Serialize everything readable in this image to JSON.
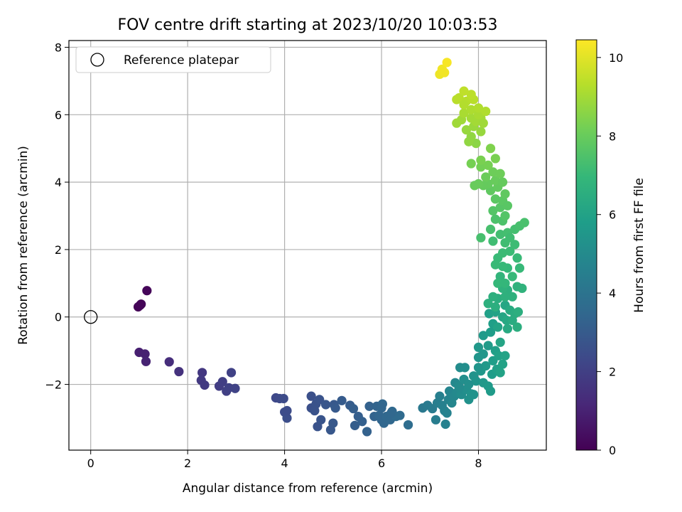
{
  "chart_data": {
    "type": "scatter",
    "title": "FOV centre drift starting at 2023/10/20 10:03:53",
    "xlabel": "Angular distance from reference (arcmin)",
    "ylabel": "Rotation from reference (arcmin)",
    "xlim": [
      -0.45,
      9.4
    ],
    "ylim": [
      -3.95,
      8.2
    ],
    "xticks": [
      "0",
      "2",
      "4",
      "6",
      "8"
    ],
    "yticks": [
      "−2",
      "0",
      "2",
      "4",
      "6",
      "8"
    ],
    "grid": true,
    "legend": {
      "placement": "top-left",
      "entries": [
        "Reference platepar"
      ]
    },
    "reference_point": {
      "x": 0,
      "y": 0
    },
    "colorbar": {
      "label": "Hours from first FF file",
      "range": [
        0,
        10.45
      ],
      "ticks": [
        "0",
        "2",
        "4",
        "6",
        "8",
        "10"
      ],
      "colormap": "viridis"
    },
    "points": [
      [
        0.98,
        0.3,
        0.1
      ],
      [
        1.04,
        0.38,
        0.12
      ],
      [
        1.16,
        0.78,
        0.15
      ],
      [
        1.02,
        0.35,
        0.13
      ],
      [
        1.0,
        -1.05,
        0.9
      ],
      [
        1.12,
        -1.1,
        0.95
      ],
      [
        1.14,
        -1.32,
        1.0
      ],
      [
        1.62,
        -1.33,
        1.35
      ],
      [
        1.82,
        -1.62,
        1.5
      ],
      [
        2.3,
        -1.65,
        1.7
      ],
      [
        2.28,
        -1.88,
        1.75
      ],
      [
        2.35,
        -2.02,
        1.8
      ],
      [
        2.65,
        -2.05,
        1.9
      ],
      [
        2.72,
        -1.92,
        1.95
      ],
      [
        2.8,
        -2.2,
        2.0
      ],
      [
        2.9,
        -1.65,
        2.05
      ],
      [
        2.85,
        -2.1,
        2.05
      ],
      [
        2.98,
        -2.12,
        2.1
      ],
      [
        3.82,
        -2.4,
        2.3
      ],
      [
        3.9,
        -2.42,
        2.35
      ],
      [
        3.98,
        -2.42,
        2.4
      ],
      [
        4.0,
        -2.82,
        2.45
      ],
      [
        4.05,
        -3.0,
        2.5
      ],
      [
        4.05,
        -2.78,
        2.45
      ],
      [
        4.55,
        -2.35,
        2.6
      ],
      [
        4.55,
        -2.7,
        2.6
      ],
      [
        4.65,
        -2.58,
        2.65
      ],
      [
        4.62,
        -2.78,
        2.65
      ],
      [
        4.68,
        -3.25,
        2.7
      ],
      [
        4.72,
        -2.45,
        2.7
      ],
      [
        4.75,
        -3.05,
        2.75
      ],
      [
        4.85,
        -2.6,
        2.8
      ],
      [
        4.95,
        -3.35,
        2.85
      ],
      [
        5.0,
        -3.15,
        2.9
      ],
      [
        5.02,
        -2.6,
        2.9
      ],
      [
        5.05,
        -2.7,
        2.95
      ],
      [
        5.18,
        -2.48,
        3.0
      ],
      [
        5.35,
        -2.62,
        3.05
      ],
      [
        5.42,
        -2.72,
        3.1
      ],
      [
        5.45,
        -3.22,
        3.1
      ],
      [
        5.52,
        -2.95,
        3.15
      ],
      [
        5.6,
        -3.1,
        3.2
      ],
      [
        5.7,
        -3.4,
        3.25
      ],
      [
        5.75,
        -2.65,
        3.25
      ],
      [
        5.85,
        -2.95,
        3.3
      ],
      [
        5.9,
        -2.65,
        3.35
      ],
      [
        5.95,
        -2.92,
        3.4
      ],
      [
        6.0,
        -3.05,
        3.4
      ],
      [
        6.02,
        -2.58,
        3.45
      ],
      [
        6.05,
        -3.15,
        3.45
      ],
      [
        6.1,
        -2.95,
        3.5
      ],
      [
        6.18,
        -3.05,
        3.5
      ],
      [
        6.22,
        -2.8,
        3.55
      ],
      [
        6.3,
        -2.95,
        3.6
      ],
      [
        6.38,
        -2.92,
        3.6
      ],
      [
        6.55,
        -3.2,
        3.7
      ],
      [
        6.2,
        -2.85,
        3.5
      ],
      [
        6.0,
        -2.7,
        3.4
      ],
      [
        6.85,
        -2.7,
        4.2
      ],
      [
        6.95,
        -2.62,
        4.3
      ],
      [
        7.05,
        -2.72,
        4.35
      ],
      [
        7.12,
        -3.05,
        4.4
      ],
      [
        7.15,
        -2.55,
        4.45
      ],
      [
        7.2,
        -2.35,
        4.5
      ],
      [
        7.25,
        -2.62,
        4.55
      ],
      [
        7.3,
        -2.78,
        4.6
      ],
      [
        7.32,
        -3.18,
        4.6
      ],
      [
        7.35,
        -2.85,
        4.65
      ],
      [
        7.38,
        -2.45,
        4.7
      ],
      [
        7.4,
        -2.2,
        4.75
      ],
      [
        7.45,
        -2.55,
        4.8
      ],
      [
        7.5,
        -2.35,
        4.85
      ],
      [
        7.52,
        -1.95,
        4.9
      ],
      [
        7.55,
        -2.25,
        4.95
      ],
      [
        7.6,
        -2.05,
        5.0
      ],
      [
        7.62,
        -1.5,
        5.05
      ],
      [
        7.65,
        -2.3,
        5.1
      ],
      [
        7.7,
        -1.85,
        5.15
      ],
      [
        7.72,
        -1.5,
        5.15
      ],
      [
        7.75,
        -2.15,
        5.2
      ],
      [
        7.8,
        -2.45,
        5.25
      ],
      [
        7.85,
        -2.28,
        5.3
      ],
      [
        7.9,
        -1.75,
        5.35
      ],
      [
        7.95,
        -1.9,
        5.4
      ],
      [
        8.0,
        -1.2,
        5.45
      ],
      [
        8.05,
        -1.6,
        5.5
      ],
      [
        8.1,
        -1.95,
        5.55
      ],
      [
        8.15,
        -1.45,
        5.6
      ],
      [
        8.2,
        -2.05,
        5.65
      ],
      [
        8.25,
        -2.2,
        5.7
      ],
      [
        8.28,
        -1.7,
        5.75
      ],
      [
        8.3,
        -1.3,
        5.8
      ],
      [
        8.35,
        -1.0,
        5.85
      ],
      [
        8.38,
        -1.55,
        5.9
      ],
      [
        8.42,
        -1.15,
        5.95
      ],
      [
        8.45,
        -1.65,
        6.0
      ],
      [
        8.5,
        -1.4,
        6.0
      ],
      [
        8.55,
        -1.15,
        6.05
      ],
      [
        7.6,
        -2.1,
        5.0
      ],
      [
        7.8,
        -2.0,
        5.2
      ],
      [
        7.9,
        -2.3,
        5.3
      ],
      [
        8.0,
        -1.5,
        5.45
      ],
      [
        8.1,
        -1.1,
        5.5
      ],
      [
        8.0,
        -0.9,
        5.55
      ],
      [
        8.1,
        -0.55,
        5.65
      ],
      [
        8.2,
        -0.85,
        5.7
      ],
      [
        8.25,
        -0.45,
        5.75
      ],
      [
        8.3,
        -0.2,
        5.85
      ],
      [
        8.22,
        0.1,
        5.9
      ],
      [
        8.35,
        0.15,
        6.0
      ],
      [
        8.4,
        -0.3,
        6.05
      ],
      [
        8.45,
        -0.75,
        6.1
      ],
      [
        8.5,
        0.0,
        6.15
      ],
      [
        8.55,
        0.35,
        6.2
      ],
      [
        8.58,
        -0.1,
        6.25
      ],
      [
        8.6,
        -0.35,
        6.3
      ],
      [
        8.65,
        0.2,
        6.35
      ],
      [
        8.7,
        -0.1,
        6.4
      ],
      [
        8.75,
        0.1,
        6.45
      ],
      [
        8.8,
        -0.3,
        6.5
      ],
      [
        8.82,
        0.15,
        6.55
      ],
      [
        8.4,
        0.55,
        6.5
      ],
      [
        8.6,
        0.8,
        6.6
      ],
      [
        8.7,
        0.6,
        6.65
      ],
      [
        8.8,
        0.9,
        6.7
      ],
      [
        8.3,
        0.6,
        6.6
      ],
      [
        8.5,
        0.85,
        6.7
      ],
      [
        8.9,
        0.85,
        6.75
      ],
      [
        8.2,
        0.4,
        6.6
      ],
      [
        8.35,
        0.3,
        6.55
      ],
      [
        8.55,
        0.6,
        6.65
      ],
      [
        8.45,
        1.2,
        6.85
      ],
      [
        8.6,
        1.45,
        6.95
      ],
      [
        8.7,
        1.2,
        7.0
      ],
      [
        8.5,
        1.5,
        7.0
      ],
      [
        8.8,
        1.75,
        7.05
      ],
      [
        8.4,
        1.75,
        7.05
      ],
      [
        8.35,
        1.55,
        7.05
      ],
      [
        8.65,
        1.95,
        7.1
      ],
      [
        8.75,
        2.15,
        7.15
      ],
      [
        8.55,
        2.2,
        7.2
      ],
      [
        8.3,
        2.25,
        7.2
      ],
      [
        8.45,
        2.45,
        7.25
      ],
      [
        8.6,
        2.5,
        7.3
      ],
      [
        8.75,
        2.6,
        7.3
      ],
      [
        8.85,
        2.7,
        7.35
      ],
      [
        8.95,
        2.8,
        7.4
      ],
      [
        8.25,
        2.6,
        7.35
      ],
      [
        8.05,
        2.35,
        7.35
      ],
      [
        8.5,
        2.85,
        7.45
      ],
      [
        8.35,
        2.9,
        7.45
      ],
      [
        8.65,
        2.35,
        7.2
      ],
      [
        8.5,
        1.9,
        7.1
      ],
      [
        8.4,
        1.0,
        6.95
      ],
      [
        8.55,
        1.0,
        6.9
      ],
      [
        8.85,
        1.45,
        7.0
      ],
      [
        8.3,
        3.15,
        7.6
      ],
      [
        8.45,
        3.25,
        7.65
      ],
      [
        8.55,
        3.0,
        7.6
      ],
      [
        8.35,
        3.5,
        7.75
      ],
      [
        8.5,
        3.45,
        7.75
      ],
      [
        8.6,
        3.3,
        7.7
      ],
      [
        8.25,
        3.75,
        7.85
      ],
      [
        8.4,
        3.85,
        7.9
      ],
      [
        8.55,
        3.65,
        7.85
      ],
      [
        8.2,
        3.95,
        7.95
      ],
      [
        8.35,
        4.05,
        8.0
      ],
      [
        8.15,
        4.15,
        8.05
      ],
      [
        8.3,
        4.3,
        8.1
      ],
      [
        8.45,
        4.25,
        8.1
      ],
      [
        8.05,
        4.45,
        8.2
      ],
      [
        8.2,
        4.5,
        8.25
      ],
      [
        8.35,
        4.7,
        8.3
      ],
      [
        8.05,
        4.65,
        8.3
      ],
      [
        8.25,
        5.0,
        8.4
      ],
      [
        7.92,
        3.9,
        8.0
      ],
      [
        7.85,
        4.55,
        8.25
      ],
      [
        8.1,
        3.9,
        7.95
      ],
      [
        8.5,
        4.0,
        7.95
      ],
      [
        8.0,
        3.95,
        8.0
      ],
      [
        7.95,
        5.15,
        8.6
      ],
      [
        7.85,
        5.35,
        8.7
      ],
      [
        8.05,
        5.5,
        8.8
      ],
      [
        7.75,
        5.55,
        8.8
      ],
      [
        7.9,
        5.65,
        8.85
      ],
      [
        7.65,
        5.85,
        8.95
      ],
      [
        7.85,
        5.9,
        9.0
      ],
      [
        8.05,
        5.9,
        9.0
      ],
      [
        7.55,
        5.75,
        8.95
      ],
      [
        7.95,
        5.8,
        9.0
      ],
      [
        7.7,
        6.05,
        9.1
      ],
      [
        7.85,
        6.15,
        9.15
      ],
      [
        8.0,
        6.0,
        9.1
      ],
      [
        8.1,
        5.75,
        8.95
      ],
      [
        7.8,
        5.2,
        8.7
      ],
      [
        7.6,
        6.5,
        9.35
      ],
      [
        7.75,
        6.4,
        9.3
      ],
      [
        7.9,
        6.45,
        9.35
      ],
      [
        7.55,
        6.45,
        9.35
      ],
      [
        7.85,
        6.6,
        9.4
      ],
      [
        7.7,
        6.7,
        9.45
      ],
      [
        8.0,
        6.2,
        9.2
      ],
      [
        7.7,
        6.3,
        9.25
      ],
      [
        8.15,
        6.1,
        9.2
      ],
      [
        7.2,
        7.2,
        10.2
      ],
      [
        7.25,
        7.35,
        10.25
      ],
      [
        7.3,
        7.25,
        10.25
      ],
      [
        7.35,
        7.55,
        10.35
      ]
    ]
  }
}
